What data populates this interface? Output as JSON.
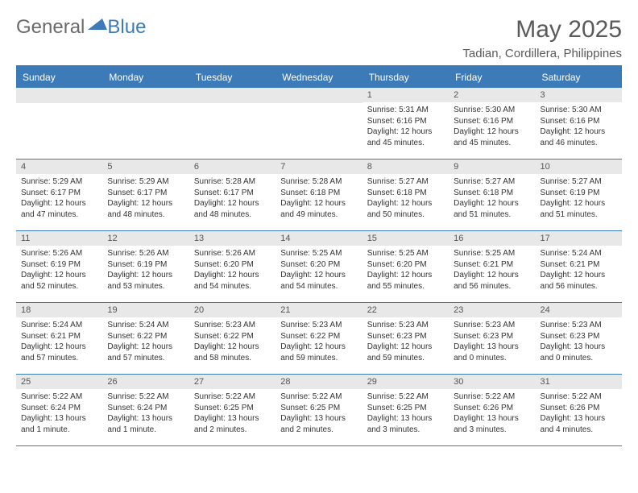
{
  "logo": {
    "text1": "General",
    "text2": "Blue"
  },
  "title": "May 2025",
  "location": "Tadian, Cordillera, Philippines",
  "weekdays": [
    "Sunday",
    "Monday",
    "Tuesday",
    "Wednesday",
    "Thursday",
    "Friday",
    "Saturday"
  ],
  "calendar": {
    "type": "table",
    "columns": 7,
    "header_bg": "#3d7ab8",
    "header_fg": "#ffffff",
    "daynum_bg": "#e8e8e8",
    "border_color": "#3d7ab8",
    "body_fontsize": 10,
    "header_fontsize": 12
  },
  "weeks": [
    [
      null,
      null,
      null,
      null,
      {
        "n": "1",
        "sr": "Sunrise: 5:31 AM",
        "ss": "Sunset: 6:16 PM",
        "dl": "Daylight: 12 hours and 45 minutes."
      },
      {
        "n": "2",
        "sr": "Sunrise: 5:30 AM",
        "ss": "Sunset: 6:16 PM",
        "dl": "Daylight: 12 hours and 45 minutes."
      },
      {
        "n": "3",
        "sr": "Sunrise: 5:30 AM",
        "ss": "Sunset: 6:16 PM",
        "dl": "Daylight: 12 hours and 46 minutes."
      }
    ],
    [
      {
        "n": "4",
        "sr": "Sunrise: 5:29 AM",
        "ss": "Sunset: 6:17 PM",
        "dl": "Daylight: 12 hours and 47 minutes."
      },
      {
        "n": "5",
        "sr": "Sunrise: 5:29 AM",
        "ss": "Sunset: 6:17 PM",
        "dl": "Daylight: 12 hours and 48 minutes."
      },
      {
        "n": "6",
        "sr": "Sunrise: 5:28 AM",
        "ss": "Sunset: 6:17 PM",
        "dl": "Daylight: 12 hours and 48 minutes."
      },
      {
        "n": "7",
        "sr": "Sunrise: 5:28 AM",
        "ss": "Sunset: 6:18 PM",
        "dl": "Daylight: 12 hours and 49 minutes."
      },
      {
        "n": "8",
        "sr": "Sunrise: 5:27 AM",
        "ss": "Sunset: 6:18 PM",
        "dl": "Daylight: 12 hours and 50 minutes."
      },
      {
        "n": "9",
        "sr": "Sunrise: 5:27 AM",
        "ss": "Sunset: 6:18 PM",
        "dl": "Daylight: 12 hours and 51 minutes."
      },
      {
        "n": "10",
        "sr": "Sunrise: 5:27 AM",
        "ss": "Sunset: 6:19 PM",
        "dl": "Daylight: 12 hours and 51 minutes."
      }
    ],
    [
      {
        "n": "11",
        "sr": "Sunrise: 5:26 AM",
        "ss": "Sunset: 6:19 PM",
        "dl": "Daylight: 12 hours and 52 minutes."
      },
      {
        "n": "12",
        "sr": "Sunrise: 5:26 AM",
        "ss": "Sunset: 6:19 PM",
        "dl": "Daylight: 12 hours and 53 minutes."
      },
      {
        "n": "13",
        "sr": "Sunrise: 5:26 AM",
        "ss": "Sunset: 6:20 PM",
        "dl": "Daylight: 12 hours and 54 minutes."
      },
      {
        "n": "14",
        "sr": "Sunrise: 5:25 AM",
        "ss": "Sunset: 6:20 PM",
        "dl": "Daylight: 12 hours and 54 minutes."
      },
      {
        "n": "15",
        "sr": "Sunrise: 5:25 AM",
        "ss": "Sunset: 6:20 PM",
        "dl": "Daylight: 12 hours and 55 minutes."
      },
      {
        "n": "16",
        "sr": "Sunrise: 5:25 AM",
        "ss": "Sunset: 6:21 PM",
        "dl": "Daylight: 12 hours and 56 minutes."
      },
      {
        "n": "17",
        "sr": "Sunrise: 5:24 AM",
        "ss": "Sunset: 6:21 PM",
        "dl": "Daylight: 12 hours and 56 minutes."
      }
    ],
    [
      {
        "n": "18",
        "sr": "Sunrise: 5:24 AM",
        "ss": "Sunset: 6:21 PM",
        "dl": "Daylight: 12 hours and 57 minutes."
      },
      {
        "n": "19",
        "sr": "Sunrise: 5:24 AM",
        "ss": "Sunset: 6:22 PM",
        "dl": "Daylight: 12 hours and 57 minutes."
      },
      {
        "n": "20",
        "sr": "Sunrise: 5:23 AM",
        "ss": "Sunset: 6:22 PM",
        "dl": "Daylight: 12 hours and 58 minutes."
      },
      {
        "n": "21",
        "sr": "Sunrise: 5:23 AM",
        "ss": "Sunset: 6:22 PM",
        "dl": "Daylight: 12 hours and 59 minutes."
      },
      {
        "n": "22",
        "sr": "Sunrise: 5:23 AM",
        "ss": "Sunset: 6:23 PM",
        "dl": "Daylight: 12 hours and 59 minutes."
      },
      {
        "n": "23",
        "sr": "Sunrise: 5:23 AM",
        "ss": "Sunset: 6:23 PM",
        "dl": "Daylight: 13 hours and 0 minutes."
      },
      {
        "n": "24",
        "sr": "Sunrise: 5:23 AM",
        "ss": "Sunset: 6:23 PM",
        "dl": "Daylight: 13 hours and 0 minutes."
      }
    ],
    [
      {
        "n": "25",
        "sr": "Sunrise: 5:22 AM",
        "ss": "Sunset: 6:24 PM",
        "dl": "Daylight: 13 hours and 1 minute."
      },
      {
        "n": "26",
        "sr": "Sunrise: 5:22 AM",
        "ss": "Sunset: 6:24 PM",
        "dl": "Daylight: 13 hours and 1 minute."
      },
      {
        "n": "27",
        "sr": "Sunrise: 5:22 AM",
        "ss": "Sunset: 6:25 PM",
        "dl": "Daylight: 13 hours and 2 minutes."
      },
      {
        "n": "28",
        "sr": "Sunrise: 5:22 AM",
        "ss": "Sunset: 6:25 PM",
        "dl": "Daylight: 13 hours and 2 minutes."
      },
      {
        "n": "29",
        "sr": "Sunrise: 5:22 AM",
        "ss": "Sunset: 6:25 PM",
        "dl": "Daylight: 13 hours and 3 minutes."
      },
      {
        "n": "30",
        "sr": "Sunrise: 5:22 AM",
        "ss": "Sunset: 6:26 PM",
        "dl": "Daylight: 13 hours and 3 minutes."
      },
      {
        "n": "31",
        "sr": "Sunrise: 5:22 AM",
        "ss": "Sunset: 6:26 PM",
        "dl": "Daylight: 13 hours and 4 minutes."
      }
    ]
  ]
}
